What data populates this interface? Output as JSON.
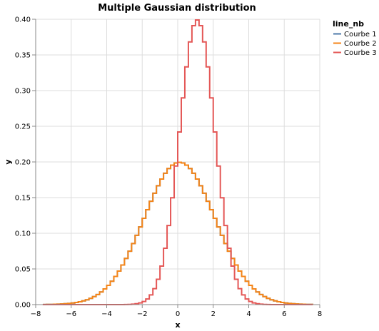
{
  "chart_data": {
    "type": "line",
    "interpolation": "step",
    "title": "Multiple Gaussian distribution",
    "xlabel": "x",
    "ylabel": "y",
    "xlim": [
      -8,
      8
    ],
    "ylim": [
      0,
      0.4
    ],
    "x_ticks": [
      -8,
      -6,
      -4,
      -2,
      0,
      2,
      4,
      6,
      8
    ],
    "y_ticks": [
      0.0,
      0.05,
      0.1,
      0.15,
      0.2,
      0.25,
      0.3,
      0.35,
      0.4
    ],
    "grid": true,
    "x_range": [
      -7.6,
      7.6
    ],
    "step": 0.2,
    "legend": {
      "title": "line_nb",
      "placement": "top-right",
      "entries": [
        {
          "name": "Courbe 1",
          "color": "#4c78a8"
        },
        {
          "name": "Courbe 2",
          "color": "#f58518"
        },
        {
          "name": "Courbe 3",
          "color": "#e45756"
        }
      ]
    },
    "series": [
      {
        "name": "Courbe 1",
        "color": "#4c78a8",
        "mean": 0,
        "std": 2
      },
      {
        "name": "Courbe 2",
        "color": "#f58518",
        "mean": 0,
        "std": 2
      },
      {
        "name": "Courbe 3",
        "color": "#e45756",
        "mean": 1,
        "std": 1
      }
    ]
  }
}
